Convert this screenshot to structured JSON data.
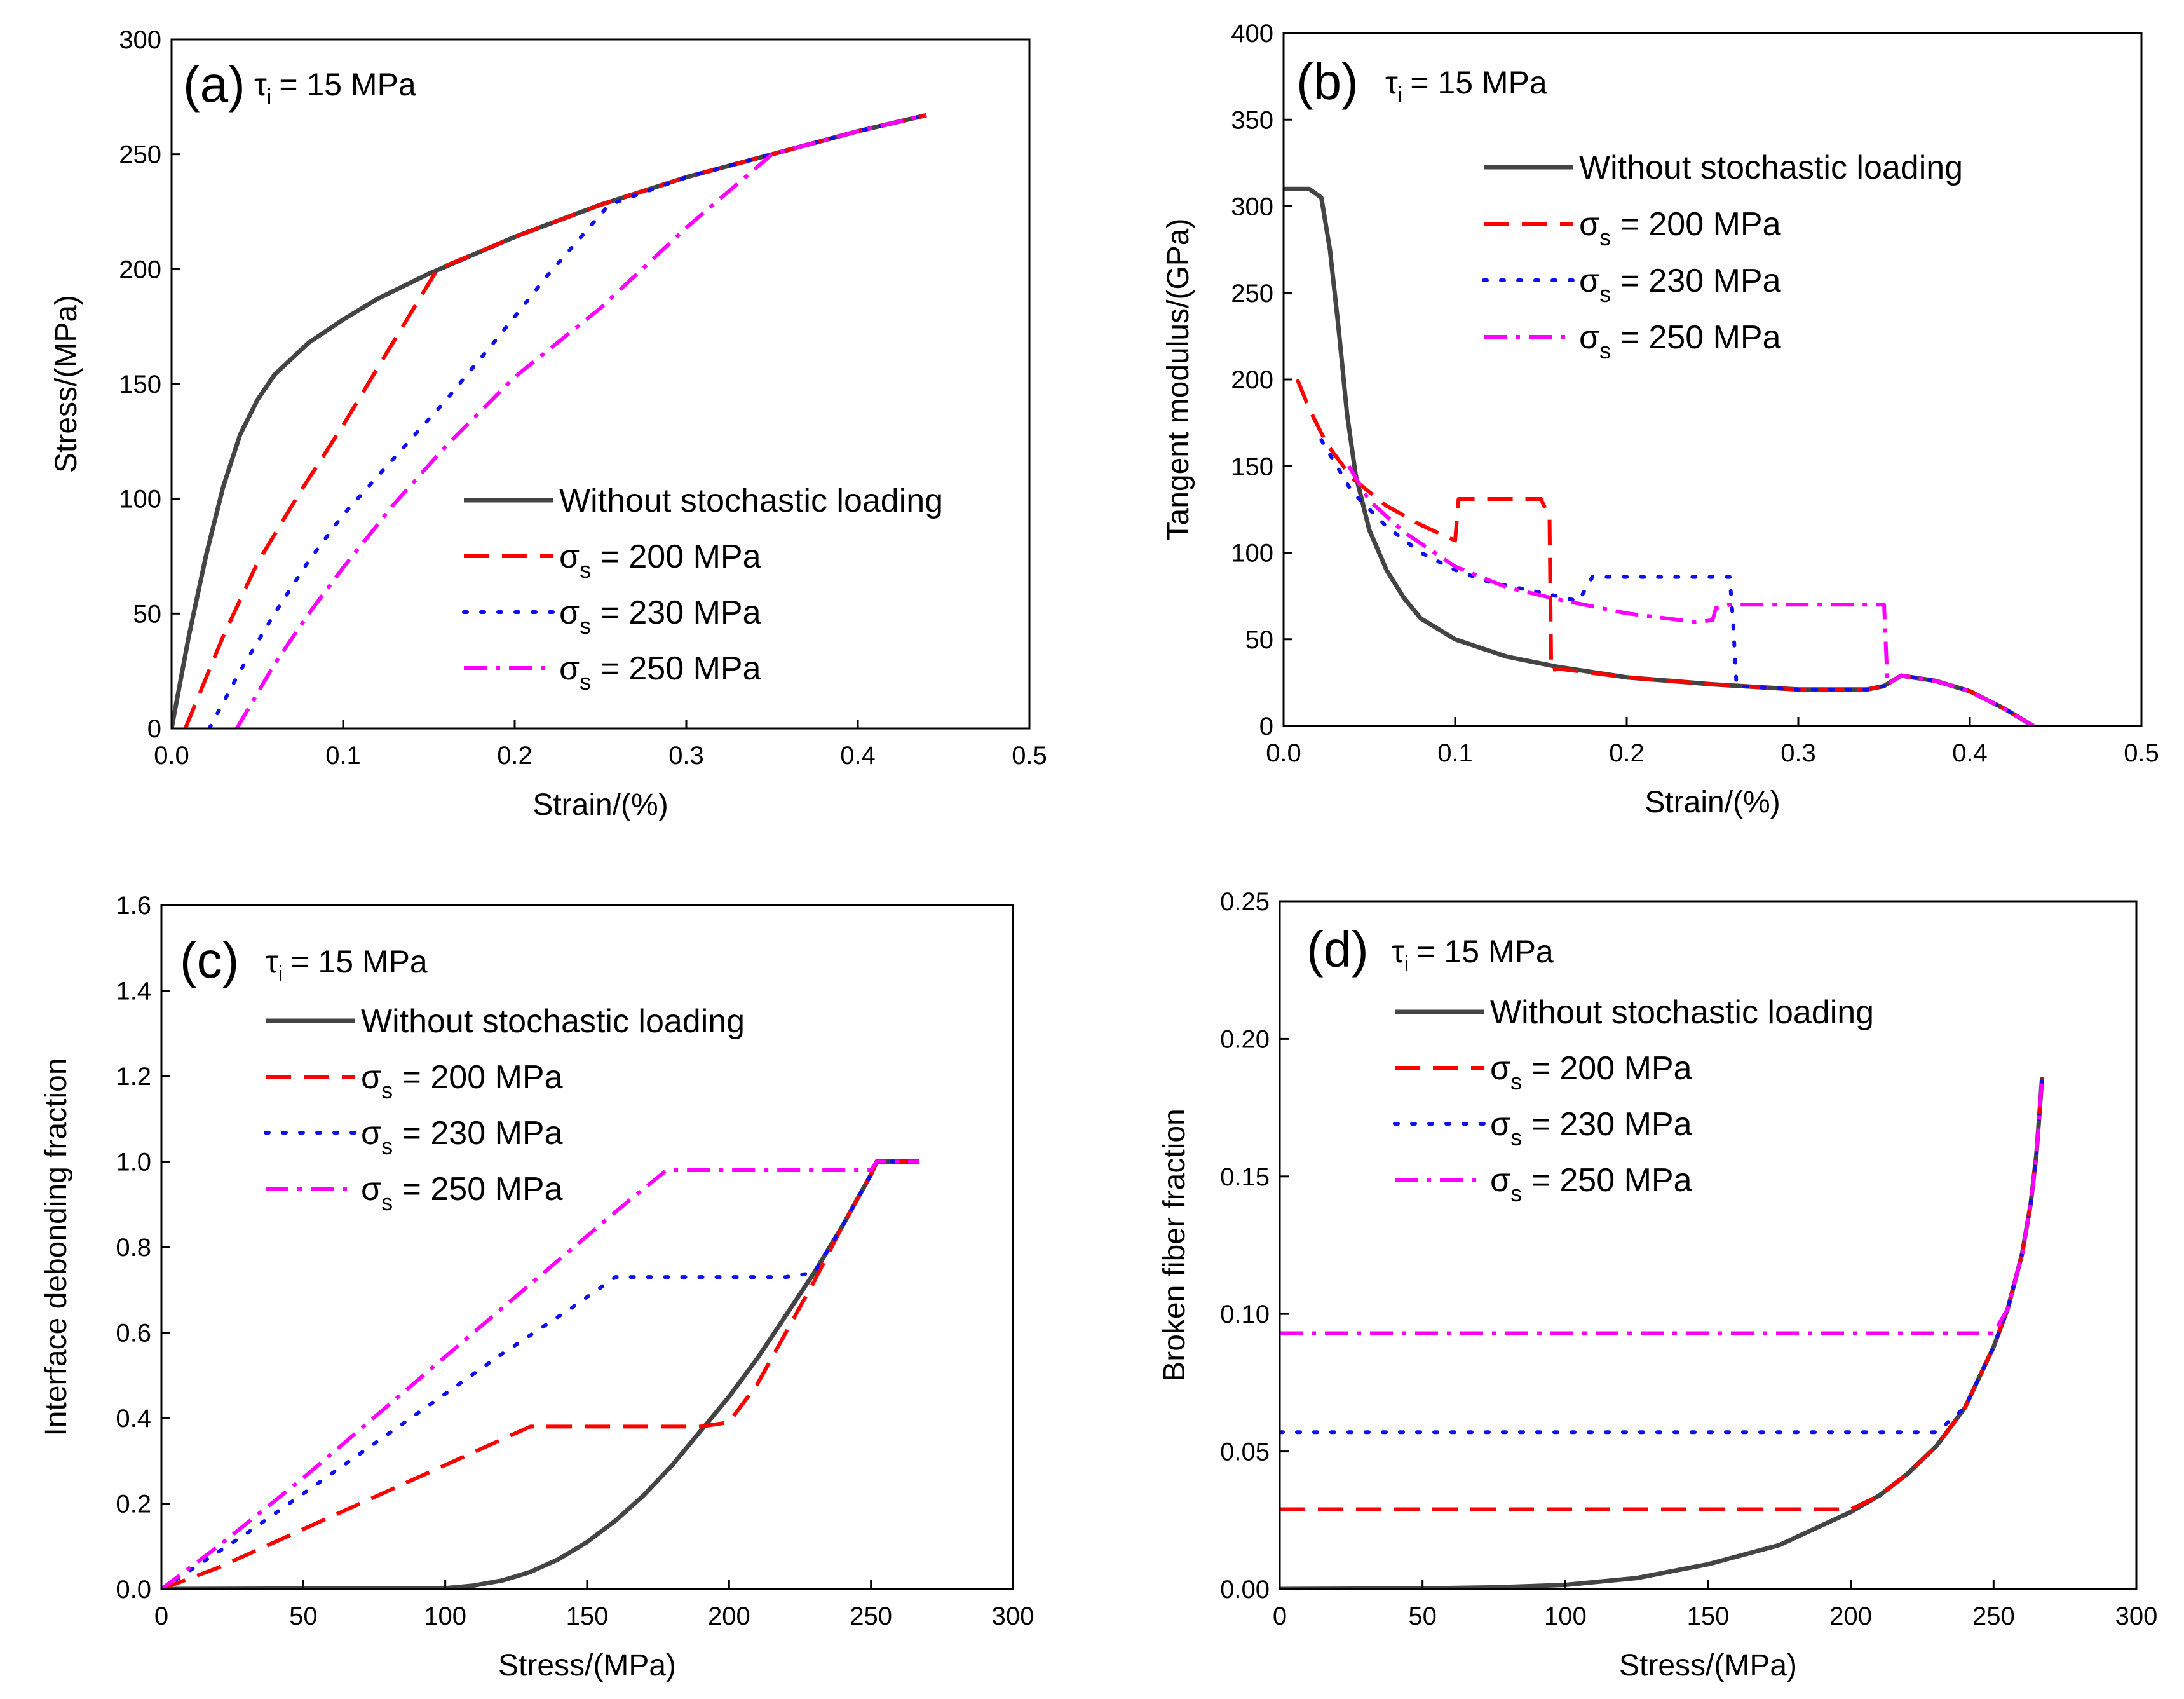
{
  "chart_data": [
    {
      "type": "line",
      "panel": "(a)",
      "annotation": "τ",
      "annotation_sub": "i",
      "annotation_value": "= 15 MPa",
      "xlabel": "Strain/(%)",
      "ylabel": "Stress/(MPa)",
      "xlim": [
        0,
        0.5
      ],
      "ylim": [
        0,
        300
      ],
      "xticks": [
        0,
        0.1,
        0.2,
        0.3,
        0.4,
        0.5
      ],
      "yticks": [
        0,
        50,
        100,
        150,
        200,
        250,
        300
      ],
      "xtick_labels": [
        "0.0",
        "0.1",
        "0.2",
        "0.3",
        "0.4",
        "0.5"
      ],
      "ytick_labels": [
        "0",
        "50",
        "100",
        "150",
        "200",
        "250",
        "300"
      ],
      "legend_position": "middle-right",
      "series": [
        {
          "name": "Without stochastic loading",
          "legend_main": "Without stochastic loading",
          "legend_sub": "",
          "legend_tail": "",
          "color": "#444444",
          "style": "solid",
          "x": [
            0,
            0.01,
            0.02,
            0.03,
            0.04,
            0.05,
            0.06,
            0.08,
            0.1,
            0.12,
            0.15,
            0.2,
            0.25,
            0.3,
            0.35,
            0.4,
            0.44
          ],
          "y": [
            0,
            40,
            75,
            105,
            128,
            143,
            154,
            168,
            178,
            187,
            198,
            214,
            228,
            240,
            250,
            260,
            267
          ]
        },
        {
          "name": "σs = 200 MPa",
          "legend_main": "σ",
          "legend_sub": "s",
          "legend_tail": " = 200 MPa",
          "color": "#ff0000",
          "style": "dash",
          "x": [
            0.008,
            0.03,
            0.05,
            0.075,
            0.1,
            0.125,
            0.155,
            0.2,
            0.25,
            0.3,
            0.35,
            0.4,
            0.44
          ],
          "y": [
            0,
            40,
            72,
            103,
            132,
            163,
            200,
            214,
            228,
            240,
            250,
            260,
            267
          ]
        },
        {
          "name": "σs = 230 MPa",
          "legend_main": "σ",
          "legend_sub": "s",
          "legend_tail": " = 230 MPa",
          "color": "#1010ee",
          "style": "dot",
          "x": [
            0.022,
            0.04,
            0.06,
            0.08,
            0.1,
            0.13,
            0.16,
            0.19,
            0.22,
            0.255,
            0.3,
            0.35,
            0.4,
            0.44
          ],
          "y": [
            0,
            25,
            50,
            73,
            93,
            118,
            143,
            170,
            198,
            228,
            240,
            250,
            260,
            267
          ]
        },
        {
          "name": "σs = 250 MPa",
          "legend_main": "σ",
          "legend_sub": "s",
          "legend_tail": " = 250 MPa",
          "color": "#ff00ff",
          "style": "dashdot",
          "x": [
            0.038,
            0.06,
            0.08,
            0.1,
            0.13,
            0.16,
            0.2,
            0.25,
            0.3,
            0.35,
            0.4,
            0.44
          ],
          "y": [
            0,
            28,
            50,
            70,
            98,
            123,
            153,
            183,
            218,
            250,
            260,
            267
          ]
        }
      ]
    },
    {
      "type": "line",
      "panel": "(b)",
      "annotation": "τ",
      "annotation_sub": "i",
      "annotation_value": "= 15 MPa",
      "xlabel": "Strain/(%)",
      "ylabel": "Tangent modulus/(GPa)",
      "xlim": [
        0,
        0.5
      ],
      "ylim": [
        0,
        400
      ],
      "xticks": [
        0,
        0.1,
        0.2,
        0.3,
        0.4,
        0.5
      ],
      "yticks": [
        0,
        50,
        100,
        150,
        200,
        250,
        300,
        350,
        400
      ],
      "xtick_labels": [
        "0.0",
        "0.1",
        "0.2",
        "0.3",
        "0.4",
        "0.5"
      ],
      "ytick_labels": [
        "0",
        "50",
        "100",
        "150",
        "200",
        "250",
        "300",
        "350",
        "400"
      ],
      "legend_position": "top-right",
      "series": [
        {
          "name": "Without stochastic loading",
          "legend_main": "Without stochastic loading",
          "legend_sub": "",
          "legend_tail": "",
          "color": "#444444",
          "style": "solid",
          "x": [
            0,
            0.015,
            0.022,
            0.027,
            0.032,
            0.037,
            0.042,
            0.05,
            0.06,
            0.07,
            0.08,
            0.1,
            0.13,
            0.16,
            0.2,
            0.25,
            0.3,
            0.34,
            0.35,
            0.36,
            0.38,
            0.4,
            0.42,
            0.437
          ],
          "y": [
            310,
            310,
            305,
            275,
            230,
            180,
            145,
            113,
            90,
            74,
            62,
            50,
            40,
            34,
            28,
            24,
            21,
            21,
            23,
            29,
            26,
            20,
            10,
            0
          ]
        },
        {
          "name": "σs = 200 MPa",
          "legend_main": "σ",
          "legend_sub": "s",
          "legend_tail": " = 200 MPa",
          "color": "#ff0000",
          "style": "dash",
          "x": [
            0.008,
            0.015,
            0.025,
            0.04,
            0.06,
            0.08,
            0.1,
            0.102,
            0.15,
            0.155,
            0.156,
            0.16,
            0.2,
            0.25,
            0.3,
            0.34,
            0.35,
            0.36,
            0.38,
            0.4,
            0.42,
            0.437
          ],
          "y": [
            200,
            183,
            163,
            143,
            127,
            116,
            107,
            131,
            131,
            120,
            32,
            33,
            28,
            24,
            21,
            21,
            23,
            29,
            26,
            20,
            10,
            0
          ]
        },
        {
          "name": "σs = 230 MPa",
          "legend_main": "σ",
          "legend_sub": "s",
          "legend_tail": " = 230 MPa",
          "color": "#1010ee",
          "style": "dot",
          "x": [
            0.022,
            0.04,
            0.06,
            0.08,
            0.1,
            0.12,
            0.15,
            0.172,
            0.18,
            0.26,
            0.262,
            0.264,
            0.3,
            0.34,
            0.35,
            0.36,
            0.38,
            0.4,
            0.42,
            0.437
          ],
          "y": [
            165,
            135,
            115,
            100,
            90,
            83,
            77,
            72,
            86,
            86,
            60,
            23,
            21,
            21,
            23,
            29,
            26,
            20,
            10,
            0
          ]
        },
        {
          "name": "σs = 250 MPa",
          "legend_main": "σ",
          "legend_sub": "s",
          "legend_tail": " = 250 MPa",
          "color": "#ff00ff",
          "style": "dashdot",
          "x": [
            0.038,
            0.05,
            0.07,
            0.1,
            0.13,
            0.16,
            0.2,
            0.24,
            0.25,
            0.252,
            0.26,
            0.34,
            0.35,
            0.352,
            0.36,
            0.38,
            0.4,
            0.42,
            0.437
          ],
          "y": [
            150,
            130,
            112,
            92,
            80,
            73,
            65,
            60,
            61,
            68,
            70,
            70,
            70,
            24,
            29,
            26,
            20,
            10,
            0
          ]
        }
      ]
    },
    {
      "type": "line",
      "panel": "(c)",
      "annotation": "τ",
      "annotation_sub": "i",
      "annotation_value": "= 15 MPa",
      "xlabel": "Stress/(MPa)",
      "ylabel": "Interface debonding fraction",
      "xlim": [
        0,
        300
      ],
      "ylim": [
        0,
        1.6
      ],
      "xticks": [
        0,
        50,
        100,
        150,
        200,
        250,
        300
      ],
      "yticks": [
        0,
        0.2,
        0.4,
        0.6,
        0.8,
        1.0,
        1.2,
        1.4,
        1.6
      ],
      "xtick_labels": [
        "0",
        "50",
        "100",
        "150",
        "200",
        "250",
        "300"
      ],
      "ytick_labels": [
        "0.0",
        "0.2",
        "0.4",
        "0.6",
        "0.8",
        "1.0",
        "1.2",
        "1.4",
        "1.6"
      ],
      "legend_position": "top-left",
      "series": [
        {
          "name": "Without stochastic loading",
          "legend_main": "Without stochastic loading",
          "legend_sub": "",
          "legend_tail": "",
          "color": "#444444",
          "style": "solid",
          "x": [
            0,
            100,
            110,
            120,
            130,
            140,
            150,
            160,
            170,
            180,
            190,
            200,
            210,
            220,
            230,
            240,
            250,
            252,
            260,
            267
          ],
          "y": [
            0,
            0.002,
            0.008,
            0.02,
            0.04,
            0.07,
            0.11,
            0.16,
            0.22,
            0.29,
            0.37,
            0.45,
            0.54,
            0.64,
            0.74,
            0.85,
            0.97,
            1.0,
            1.0,
            1.0
          ]
        },
        {
          "name": "σs = 200 MPa",
          "legend_main": "σ",
          "legend_sub": "s",
          "legend_tail": " = 200 MPa",
          "color": "#ff0000",
          "style": "dash",
          "x": [
            0,
            20,
            40,
            60,
            80,
            100,
            120,
            130,
            150,
            170,
            190,
            200,
            210,
            220,
            230,
            240,
            250,
            252,
            260,
            267
          ],
          "y": [
            0,
            0.05,
            0.11,
            0.17,
            0.23,
            0.29,
            0.35,
            0.38,
            0.38,
            0.38,
            0.38,
            0.39,
            0.48,
            0.6,
            0.72,
            0.85,
            0.97,
            1.0,
            1.0,
            1.0
          ]
        },
        {
          "name": "σs = 230 MPa",
          "legend_main": "σ",
          "legend_sub": "s",
          "legend_tail": " = 230 MPa",
          "color": "#1010ee",
          "style": "dot",
          "x": [
            0,
            30,
            60,
            90,
            120,
            145,
            160,
            180,
            200,
            220,
            230,
            240,
            250,
            252,
            260,
            267
          ],
          "y": [
            0,
            0.13,
            0.27,
            0.41,
            0.55,
            0.66,
            0.73,
            0.73,
            0.73,
            0.73,
            0.74,
            0.85,
            0.97,
            1.0,
            1.0,
            1.0
          ]
        },
        {
          "name": "σs = 250 MPa",
          "legend_main": "σ",
          "legend_sub": "s",
          "legend_tail": " = 250 MPa",
          "color": "#ff00ff",
          "style": "dashdot",
          "x": [
            0,
            20,
            50,
            80,
            110,
            140,
            165,
            178,
            200,
            230,
            250,
            252,
            260,
            267
          ],
          "y": [
            0,
            0.1,
            0.26,
            0.43,
            0.6,
            0.77,
            0.91,
            0.98,
            0.98,
            0.98,
            0.98,
            1.0,
            1.0,
            1.0
          ]
        }
      ]
    },
    {
      "type": "line",
      "panel": "(d)",
      "annotation": "τ",
      "annotation_sub": "i",
      "annotation_value": "= 15 MPa",
      "xlabel": "Stress/(MPa)",
      "ylabel": "Broken fiber fraction",
      "xlim": [
        0,
        300
      ],
      "ylim": [
        0,
        0.25
      ],
      "xticks": [
        0,
        50,
        100,
        150,
        200,
        250,
        300
      ],
      "yticks": [
        0,
        0.05,
        0.1,
        0.15,
        0.2,
        0.25
      ],
      "xtick_labels": [
        "0",
        "50",
        "100",
        "150",
        "200",
        "250",
        "300"
      ],
      "ytick_labels": [
        "0.00",
        "0.05",
        "0.10",
        "0.15",
        "0.20",
        "0.25"
      ],
      "legend_position": "top-left",
      "series": [
        {
          "name": "Without stochastic loading",
          "legend_main": "Without stochastic loading",
          "legend_sub": "",
          "legend_tail": "",
          "color": "#444444",
          "style": "solid",
          "x": [
            0,
            50,
            75,
            100,
            125,
            150,
            175,
            200,
            210,
            220,
            230,
            240,
            250,
            255,
            260,
            263,
            265,
            267
          ],
          "y": [
            0,
            0.0002,
            0.0006,
            0.0015,
            0.004,
            0.009,
            0.016,
            0.028,
            0.034,
            0.042,
            0.052,
            0.066,
            0.088,
            0.102,
            0.122,
            0.14,
            0.158,
            0.186
          ]
        },
        {
          "name": "σs = 200 MPa",
          "legend_main": "σ",
          "legend_sub": "s",
          "legend_tail": " = 200 MPa",
          "color": "#ff0000",
          "style": "dash",
          "x": [
            0,
            100,
            150,
            198,
            200,
            210,
            220,
            230,
            240,
            250,
            255,
            260,
            263,
            265,
            267
          ],
          "y": [
            0.029,
            0.029,
            0.029,
            0.029,
            0.029,
            0.034,
            0.042,
            0.052,
            0.066,
            0.088,
            0.102,
            0.122,
            0.14,
            0.158,
            0.186
          ]
        },
        {
          "name": "σs = 230 MPa",
          "legend_main": "σ",
          "legend_sub": "s",
          "legend_tail": " = 230 MPa",
          "color": "#1010ee",
          "style": "dot",
          "x": [
            0,
            100,
            200,
            228,
            230,
            240,
            250,
            255,
            260,
            263,
            265,
            267
          ],
          "y": [
            0.057,
            0.057,
            0.057,
            0.057,
            0.057,
            0.066,
            0.088,
            0.102,
            0.122,
            0.14,
            0.158,
            0.186
          ]
        },
        {
          "name": "σs = 250 MPa",
          "legend_main": "σ",
          "legend_sub": "s",
          "legend_tail": " = 250 MPa",
          "color": "#ff00ff",
          "style": "dashdot",
          "x": [
            0,
            100,
            200,
            248,
            250,
            255,
            260,
            263,
            265,
            267
          ],
          "y": [
            0.093,
            0.093,
            0.093,
            0.093,
            0.093,
            0.102,
            0.122,
            0.14,
            0.158,
            0.186
          ]
        }
      ]
    }
  ]
}
